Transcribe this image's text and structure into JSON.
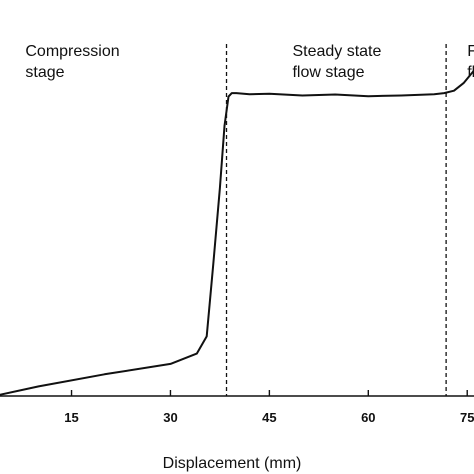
{
  "chart_data": {
    "type": "line",
    "xlabel": "Displacement (mm)",
    "ylabel": "",
    "title": "",
    "xlim": [
      4,
      78
    ],
    "ylim": [
      0,
      1
    ],
    "x_ticks": [
      15,
      30,
      45,
      60,
      75
    ],
    "grid": false,
    "legend": "none",
    "stage_boundaries": [
      38.5,
      71.8
    ],
    "stage_labels": [
      {
        "lines": [
          "Compression",
          "stage"
        ],
        "x": 8
      },
      {
        "lines": [
          "Steady state",
          "flow stage"
        ],
        "x": 48.5
      },
      {
        "lines": [
          "F",
          "fl"
        ],
        "x": 75
      }
    ],
    "series": [
      {
        "color": "#111111",
        "x": [
          4,
          10,
          20,
          30,
          34,
          35.5,
          36.5,
          37.5,
          38.2,
          38.8,
          39.3,
          40,
          42,
          45,
          50,
          55,
          60,
          65,
          70,
          71.5,
          73,
          74.5,
          76,
          77,
          78
        ],
        "y": [
          0.0,
          0.025,
          0.06,
          0.09,
          0.12,
          0.17,
          0.38,
          0.6,
          0.78,
          0.865,
          0.875,
          0.875,
          0.872,
          0.873,
          0.868,
          0.871,
          0.866,
          0.868,
          0.872,
          0.875,
          0.882,
          0.905,
          0.94,
          0.96,
          0.975
        ]
      }
    ]
  }
}
